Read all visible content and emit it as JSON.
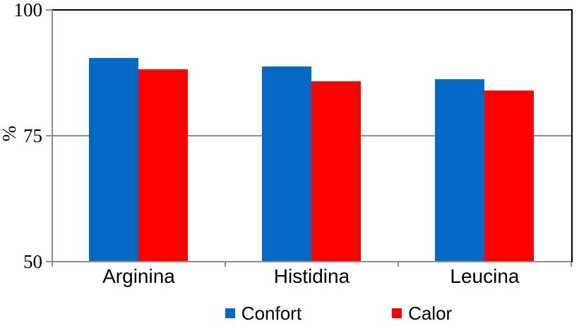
{
  "chart_data": {
    "type": "bar",
    "title": "",
    "categories": [
      "Arginina",
      "Histidina",
      "Leucina"
    ],
    "series": [
      {
        "name": "Confort",
        "color": "#0568C5",
        "values": [
          90.5,
          88.8,
          86.2
        ]
      },
      {
        "name": "Calor",
        "color": "#FE0000",
        "values": [
          88.2,
          85.8,
          84.0
        ]
      }
    ],
    "xlabel": "",
    "ylabel": "%",
    "ylim": [
      50,
      100
    ],
    "yticks": [
      100,
      75,
      50
    ],
    "grid": "horizontal",
    "legend_position": "bottom"
  },
  "colors": {
    "background": "#FFFFFF",
    "plot_border": "#000000",
    "axis": "#8C8C8C",
    "gridline": "#8C8C8C",
    "text": "#000000"
  }
}
